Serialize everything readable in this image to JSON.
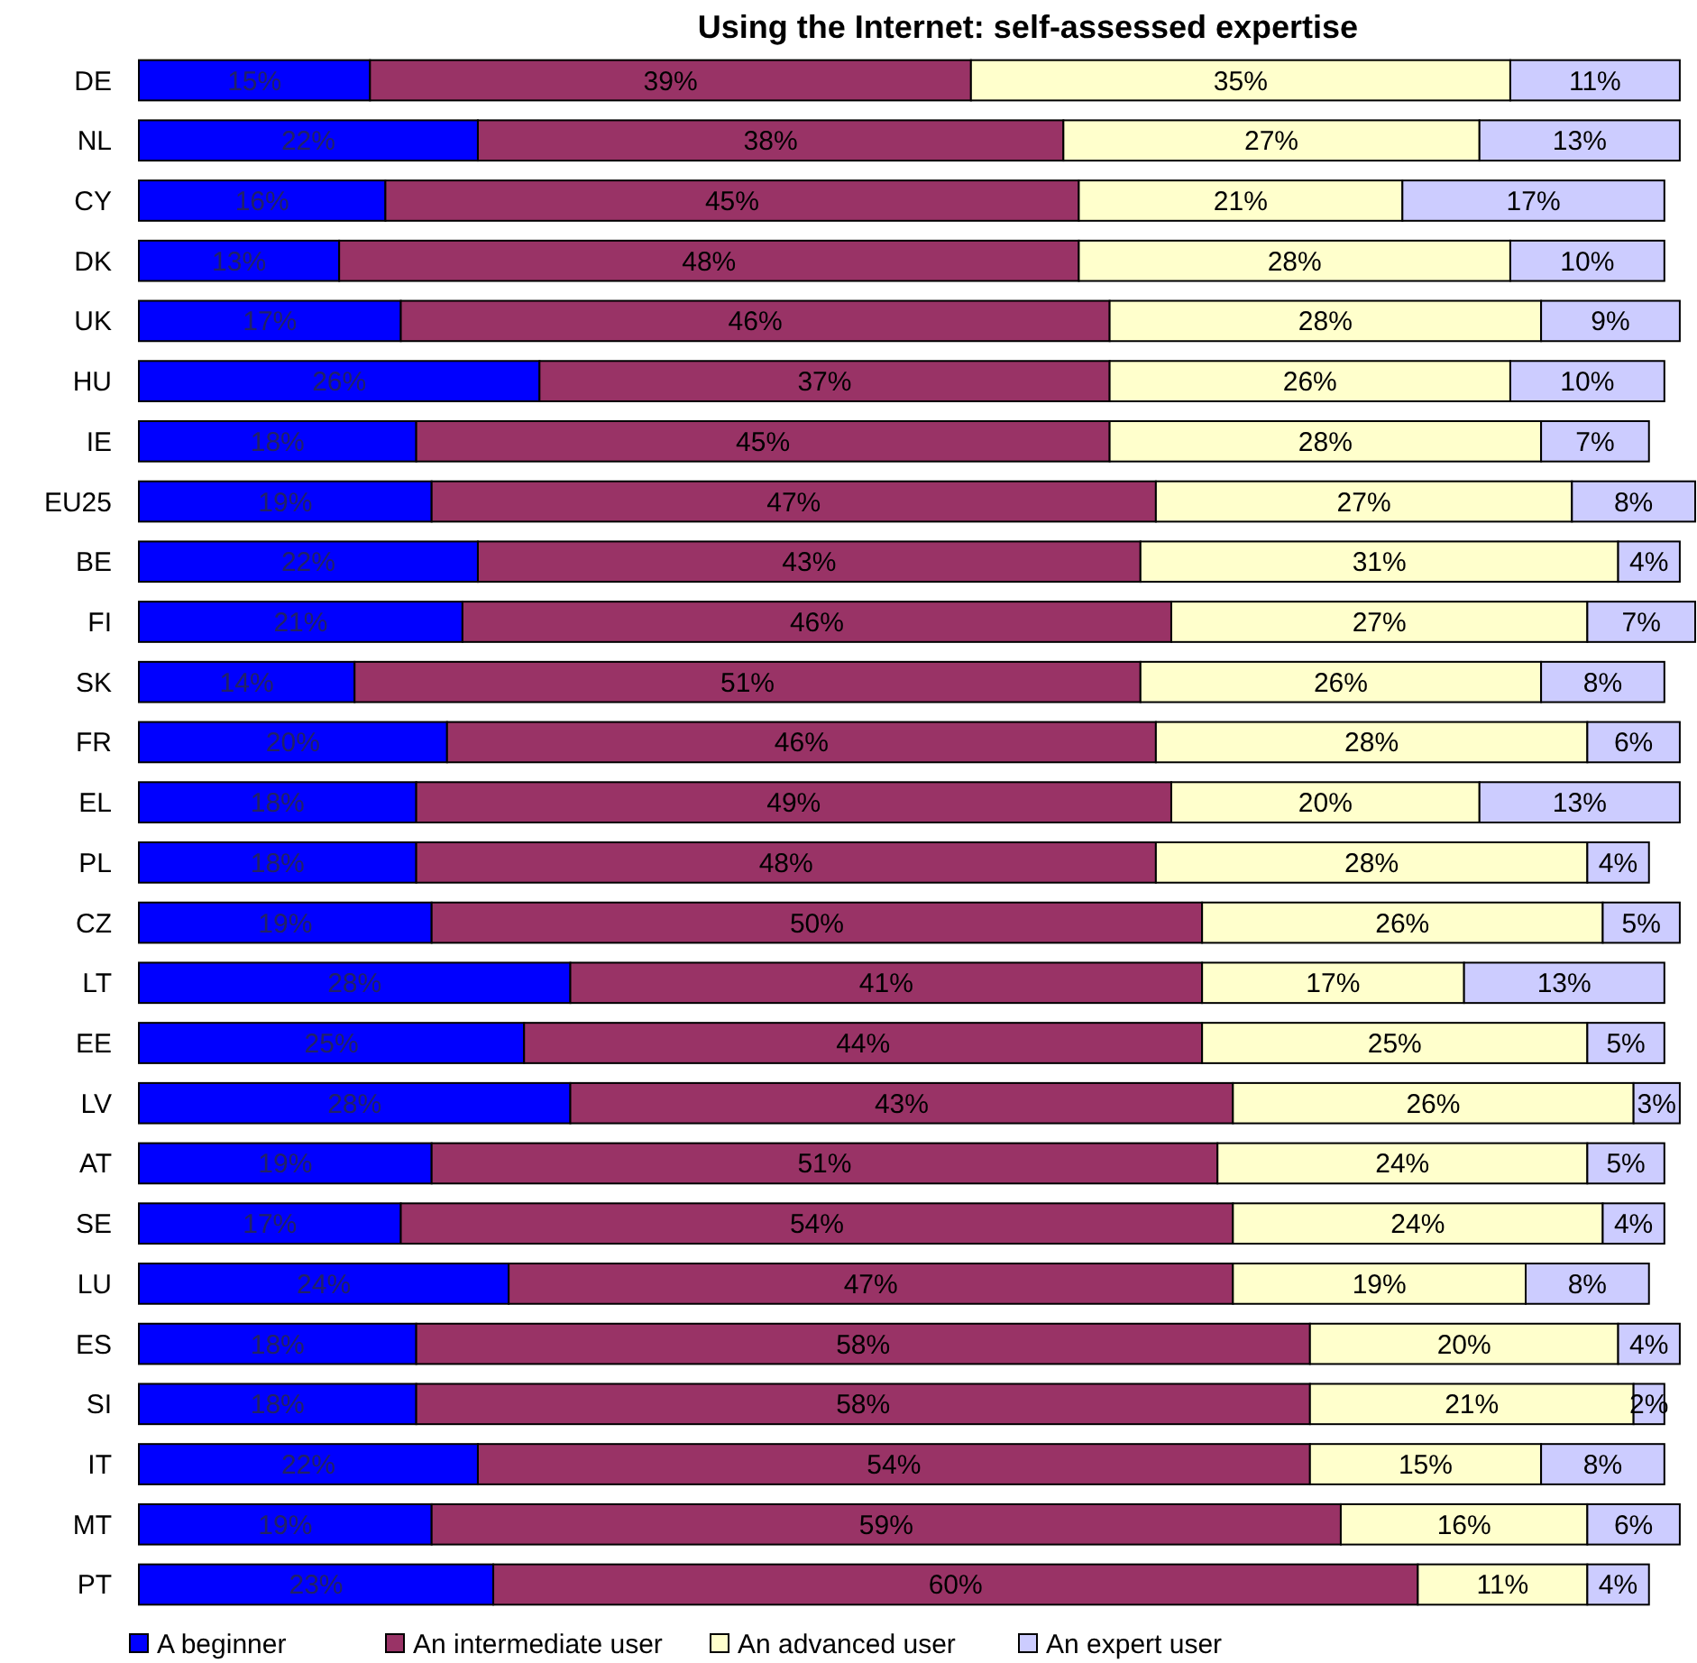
{
  "chart_data": {
    "type": "bar",
    "title": "Using the Internet: self-assessed expertise",
    "orientation": "horizontal",
    "stacked": true,
    "legend": "bottom",
    "categories": [
      "DE",
      "NL",
      "CY",
      "DK",
      "UK",
      "HU",
      "IE",
      "EU25",
      "BE",
      "FI",
      "SK",
      "FR",
      "EL",
      "PL",
      "CZ",
      "LT",
      "EE",
      "LV",
      "AT",
      "SE",
      "LU",
      "ES",
      "SI",
      "IT",
      "MT",
      "PT"
    ],
    "series": [
      {
        "name": "A beginner",
        "color": "#0000ff",
        "values": [
          15,
          22,
          16,
          13,
          17,
          26,
          18,
          19,
          22,
          21,
          14,
          20,
          18,
          18,
          19,
          28,
          25,
          28,
          19,
          17,
          24,
          18,
          18,
          22,
          19,
          23
        ],
        "value_labels": [
          "15%",
          "22%",
          "16%",
          "13%",
          "17%",
          "26%",
          "18%",
          "19%",
          "22%",
          "21%",
          "14%",
          "20%",
          "18%",
          "18%",
          "19%",
          "28%",
          "25%",
          "28%",
          "19%",
          "17%",
          "24%",
          "18%",
          "18%",
          "22%",
          "19%",
          "23%"
        ]
      },
      {
        "name": "An intermediate user",
        "color": "#993366",
        "values": [
          39,
          38,
          45,
          48,
          46,
          37,
          45,
          47,
          43,
          46,
          51,
          46,
          49,
          48,
          50,
          41,
          44,
          43,
          51,
          54,
          47,
          58,
          58,
          54,
          59,
          60
        ],
        "value_labels": [
          "39%",
          "38%",
          "45%",
          "48%",
          "46%",
          "37%",
          "45%",
          "47%",
          "43%",
          "46%",
          "51%",
          "46%",
          "49%",
          "48%",
          "50%",
          "41%",
          "44%",
          "43%",
          "51%",
          "54%",
          "47%",
          "58%",
          "58%",
          "54%",
          "59%",
          "60%"
        ]
      },
      {
        "name": "An advanced user",
        "color": "#ffffcc",
        "values": [
          35,
          27,
          21,
          28,
          28,
          26,
          28,
          27,
          31,
          27,
          26,
          28,
          20,
          28,
          26,
          17,
          25,
          26,
          24,
          24,
          19,
          20,
          21,
          15,
          16,
          11
        ],
        "value_labels": [
          "35%",
          "27%",
          "21%",
          "28%",
          "28%",
          "26%",
          "28%",
          "27%",
          "31%",
          "27%",
          "26%",
          "28%",
          "20%",
          "28%",
          "26%",
          "17%",
          "25%",
          "26%",
          "24%",
          "24%",
          "19%",
          "20%",
          "21%",
          "15%",
          "16%",
          "11%"
        ]
      },
      {
        "name": "An expert user",
        "color": "#ccccff",
        "values": [
          11,
          13,
          17,
          10,
          9,
          10,
          7,
          8,
          4,
          7,
          8,
          6,
          13,
          4,
          5,
          13,
          5,
          3,
          5,
          4,
          8,
          4,
          2,
          8,
          6,
          4
        ],
        "value_labels": [
          "11%",
          "13%",
          "17%",
          "10%",
          "9%",
          "10%",
          "7%",
          "8%",
          "4%",
          "7%",
          "8%",
          "6%",
          "13%",
          "4%",
          "5%",
          "13%",
          "5%",
          "3%",
          "5%",
          "4%",
          "8%",
          "4%",
          "2%",
          "8%",
          "6%",
          "4%"
        ]
      }
    ]
  }
}
